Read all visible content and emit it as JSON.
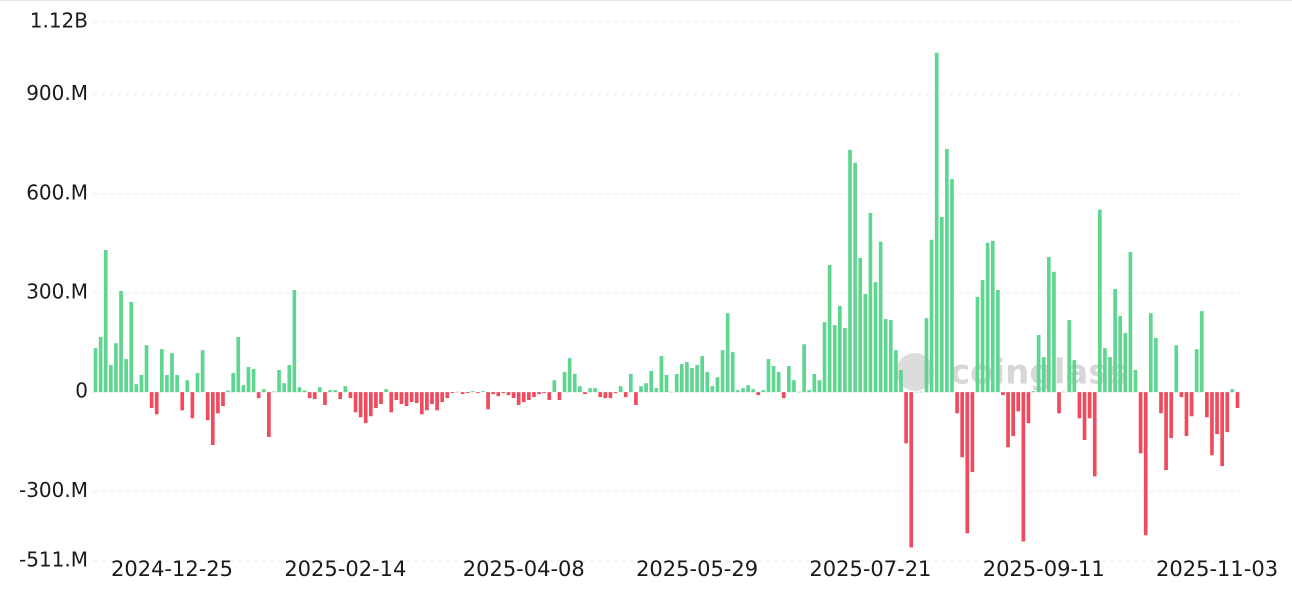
{
  "chart_data": {
    "type": "bar",
    "watermark": "coinglass",
    "positive_color": "#5fd690",
    "negative_color": "#f04a5e",
    "grid": true,
    "ylim": [
      -511000000.0,
      1120000000.0
    ],
    "yticks": [
      {
        "value": -511000000.0,
        "label": "-511.M"
      },
      {
        "value": -300000000.0,
        "label": "-300.M"
      },
      0,
      {
        "value": 300000000.0,
        "label": "300.M"
      },
      {
        "value": 600000000.0,
        "label": "600.M"
      },
      {
        "value": 900000000.0,
        "label": "900.M"
      },
      {
        "value": 1120000000.0,
        "label": "1.12B"
      }
    ],
    "categories": [
      null,
      null,
      null,
      null,
      null,
      null,
      null,
      null,
      null,
      null,
      null,
      null,
      null,
      null,
      null,
      "2024-12-25",
      null,
      null,
      null,
      null,
      null,
      null,
      null,
      null,
      null,
      null,
      null,
      null,
      null,
      null,
      null,
      null,
      null,
      null,
      null,
      null,
      null,
      null,
      null,
      null,
      null,
      null,
      null,
      null,
      null,
      null,
      null,
      null,
      null,
      "2025-02-14",
      null,
      null,
      null,
      null,
      null,
      null,
      null,
      null,
      null,
      null,
      null,
      null,
      null,
      null,
      null,
      null,
      null,
      null,
      null,
      null,
      null,
      null,
      null,
      null,
      null,
      null,
      null,
      null,
      null,
      null,
      null,
      null,
      null,
      null,
      "2025-04-08",
      null,
      null,
      null,
      null,
      null,
      null,
      null,
      null,
      null,
      null,
      null,
      null,
      null,
      null,
      null,
      null,
      null,
      null,
      null,
      null,
      null,
      null,
      null,
      null,
      null,
      null,
      null,
      null,
      null,
      null,
      null,
      null,
      null,
      "2025-05-29",
      null,
      null,
      null,
      null,
      null,
      null,
      null,
      null,
      null,
      null,
      null,
      null,
      null,
      null,
      null,
      null,
      null,
      null,
      null,
      null,
      null,
      null,
      null,
      null,
      null,
      null,
      null,
      null,
      null,
      null,
      null,
      null,
      null,
      "2025-07-21",
      null,
      null,
      null,
      null,
      null,
      null,
      null,
      null,
      null,
      null,
      null,
      null,
      null,
      null,
      null,
      null,
      null,
      null,
      null,
      null,
      null,
      null,
      null,
      null,
      null,
      null,
      null,
      null,
      null,
      null,
      null,
      null,
      null,
      "2025-09-11",
      null,
      null,
      null,
      null,
      null,
      null,
      null,
      null,
      null,
      null,
      null,
      null,
      null,
      null,
      null,
      null,
      null,
      null,
      null,
      null,
      null,
      null,
      null,
      null,
      null,
      null,
      null,
      null,
      null,
      null,
      null,
      null,
      null,
      "2025-11-03",
      null,
      null,
      null,
      null
    ],
    "values": [
      133000000.0,
      167000000.0,
      430000000.0,
      82000000.0,
      148000000.0,
      306000000.0,
      100000000.0,
      273000000.0,
      24000000.0,
      52000000.0,
      142000000.0,
      -48000000.0,
      -67000000.0,
      130000000.0,
      52000000.0,
      118000000.0,
      52000000.0,
      -55000000.0,
      36000000.0,
      -79000000.0,
      58000000.0,
      127000000.0,
      -85000000.0,
      -160000000.0,
      -64000000.0,
      -42000000.0,
      5000000.0,
      58000000.0,
      167000000.0,
      21000000.0,
      76000000.0,
      70000000.0,
      -18000000.0,
      9000000.0,
      -136000000.0,
      2000000.0,
      67000000.0,
      27000000.0,
      82000000.0,
      309000000.0,
      15000000.0,
      5000000.0,
      -18000000.0,
      -21000000.0,
      15000000.0,
      -39000000.0,
      6000000.0,
      6000000.0,
      -21000000.0,
      18000000.0,
      -18000000.0,
      -61000000.0,
      -76000000.0,
      -94000000.0,
      -73000000.0,
      -48000000.0,
      -36000000.0,
      9000000.0,
      -61000000.0,
      -24000000.0,
      -36000000.0,
      -42000000.0,
      -30000000.0,
      -33000000.0,
      -67000000.0,
      -55000000.0,
      -36000000.0,
      -55000000.0,
      -30000000.0,
      -18000000.0,
      -3000000.0,
      1000000.0,
      -6000000.0,
      -3000000.0,
      3000000.0,
      -3000000.0,
      3000000.0,
      -52000000.0,
      -6000000.0,
      -12000000.0,
      -3000000.0,
      -9000000.0,
      -18000000.0,
      -39000000.0,
      -30000000.0,
      -24000000.0,
      -15000000.0,
      -6000000.0,
      -3000000.0,
      -24000000.0,
      36000000.0,
      -24000000.0,
      61000000.0,
      103000000.0,
      55000000.0,
      18000000.0,
      -6000000.0,
      12000000.0,
      12000000.0,
      -15000000.0,
      -18000000.0,
      -18000000.0,
      -3000000.0,
      18000000.0,
      -15000000.0,
      55000000.0,
      -39000000.0,
      18000000.0,
      27000000.0,
      64000000.0,
      12000000.0,
      109000000.0,
      52000000.0,
      1000000.0,
      55000000.0,
      85000000.0,
      91000000.0,
      73000000.0,
      82000000.0,
      109000000.0,
      61000000.0,
      18000000.0,
      45000000.0,
      127000000.0,
      239000000.0,
      121000000.0,
      6000000.0,
      12000000.0,
      21000000.0,
      9000000.0,
      -9000000.0,
      6000000.0,
      100000000.0,
      79000000.0,
      61000000.0,
      -18000000.0,
      79000000.0,
      36000000.0,
      1000000.0,
      145000000.0,
      6000000.0,
      55000000.0,
      36000000.0,
      212000000.0,
      385000000.0,
      203000000.0,
      261000000.0,
      194000000.0,
      733000000.0,
      694000000.0,
      406000000.0,
      297000000.0,
      542000000.0,
      333000000.0,
      455000000.0,
      221000000.0,
      218000000.0,
      127000000.0,
      67000000.0,
      -155000000.0,
      -470000000.0,
      1000000.0,
      1000000.0,
      224000000.0,
      461000000.0,
      1027000000.0,
      530000000.0,
      736000000.0,
      645000000.0,
      -64000000.0,
      -197000000.0,
      -427000000.0,
      -242000000.0,
      288000000.0,
      339000000.0,
      452000000.0,
      458000000.0,
      309000000.0,
      -9000000.0,
      -167000000.0,
      -133000000.0,
      -58000000.0,
      -452000000.0,
      -94000000.0,
      3000000.0,
      173000000.0,
      106000000.0,
      409000000.0,
      364000000.0,
      -64000000.0,
      1000000.0,
      218000000.0,
      97000000.0,
      -79000000.0,
      -145000000.0,
      -79000000.0,
      -255000000.0,
      552000000.0,
      133000000.0,
      106000000.0,
      312000000.0,
      230000000.0,
      179000000.0,
      424000000.0,
      67000000.0,
      -185000000.0,
      -433000000.0,
      239000000.0,
      164000000.0,
      -64000000.0,
      -236000000.0,
      -139000000.0,
      142000000.0,
      -15000000.0,
      -133000000.0,
      -73000000.0,
      130000000.0,
      245000000.0,
      -76000000.0,
      -191000000.0,
      -127000000.0,
      -224000000.0,
      -121000000.0,
      9000000.0,
      -48000000.0
    ]
  }
}
